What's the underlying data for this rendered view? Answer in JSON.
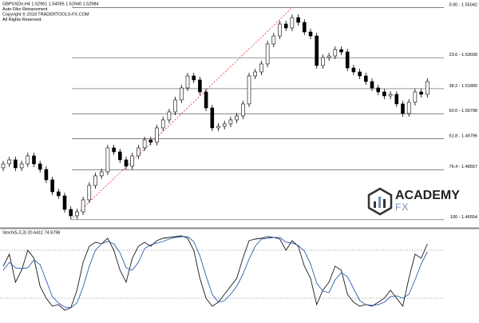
{
  "header": {
    "symbol_line": "GBPUSDe,H4  1.52961 1.54095 1.52940 1.52984",
    "indicator": "Auto Fibo Retracement",
    "copyright": "Copyright © 2018 TRADERTOOLS-FX.COM",
    "rights": "All Rights Reserved."
  },
  "logo": {
    "name": "ACADEMY",
    "sub": "FX"
  },
  "chart_data": [
    {
      "type": "candlestick",
      "open": [
        1.4863,
        1.4879,
        1.4895,
        1.4863,
        1.4879,
        1.4911,
        1.4879,
        1.48566,
        1.4815,
        1.4767,
        1.4751,
        1.46966,
        1.4671,
        1.4687,
        1.4735,
        1.47926,
        1.4831,
        1.4847,
        1.4943,
        1.4927,
        1.4895,
        1.48694,
        1.4911,
        1.4943,
        1.4975,
        1.49654,
        1.5023,
        1.5055,
        1.5087,
        1.5135,
        1.5183,
        1.5231,
        1.5215,
        1.5167,
        1.5103,
        1.5023,
        1.50294,
        1.5039,
        1.5055,
        1.5071,
        1.5119,
        1.5231,
        1.5247,
        1.5279,
        1.5359,
        1.5391,
        1.5439,
        1.5423,
        1.54646,
        1.54454,
        1.5407,
        1.5391,
        1.52726,
        1.53046,
        1.5311,
        1.53366,
        1.5327,
        1.5263,
        1.5247,
        1.5231,
        1.52086,
        1.5183,
        1.5167,
        1.5151,
        1.51574,
        1.5119,
        1.50806,
        1.51254,
        1.5167,
        1.51574
      ],
      "high": [
        1.48918,
        1.49078,
        1.49078,
        1.48918,
        1.49238,
        1.49238,
        1.48918,
        1.48694,
        1.48278,
        1.47798,
        1.47638,
        1.47094,
        1.46998,
        1.47478,
        1.48054,
        1.48438,
        1.48598,
        1.49558,
        1.49558,
        1.49398,
        1.49078,
        1.49238,
        1.49558,
        1.49878,
        1.49878,
        1.50358,
        1.50678,
        1.50998,
        1.51478,
        1.51958,
        1.52438,
        1.52438,
        1.52278,
        1.51798,
        1.51158,
        1.50422,
        1.50518,
        1.50678,
        1.50838,
        1.51318,
        1.52438,
        1.52598,
        1.52918,
        1.53718,
        1.54038,
        1.54518,
        1.54518,
        1.54774,
        1.54774,
        1.54582,
        1.54198,
        1.54038,
        1.53174,
        1.53238,
        1.53494,
        1.53494,
        1.53398,
        1.52758,
        1.52598,
        1.52438,
        1.52214,
        1.51958,
        1.51798,
        1.51702,
        1.51702,
        1.51318,
        1.51382,
        1.51798,
        1.51798,
        1.52214
      ],
      "low": [
        1.48502,
        1.48662,
        1.48502,
        1.48502,
        1.48662,
        1.48662,
        1.48438,
        1.48022,
        1.47542,
        1.47382,
        1.46838,
        1.46582,
        1.46582,
        1.46742,
        1.47222,
        1.47798,
        1.48182,
        1.48342,
        1.49142,
        1.48822,
        1.48566,
        1.48566,
        1.48982,
        1.49302,
        1.49526,
        1.49526,
        1.50102,
        1.50422,
        1.50742,
        1.51222,
        1.51702,
        1.52022,
        1.51542,
        1.50902,
        1.50102,
        1.50102,
        1.50166,
        1.50262,
        1.50422,
        1.50582,
        1.51062,
        1.52182,
        1.52342,
        1.52662,
        1.53462,
        1.53782,
        1.54102,
        1.54102,
        1.54326,
        1.53942,
        1.53782,
        1.52598,
        1.52598,
        1.52918,
        1.52982,
        1.53142,
        1.52502,
        1.52342,
        1.52182,
        1.51958,
        1.51702,
        1.51542,
        1.51382,
        1.51382,
        1.51062,
        1.50678,
        1.50678,
        1.51126,
        1.51446,
        1.51446
      ],
      "close": [
        1.4879,
        1.4895,
        1.4863,
        1.4879,
        1.4911,
        1.4879,
        1.48566,
        1.4815,
        1.4767,
        1.4751,
        1.46966,
        1.4671,
        1.4687,
        1.4735,
        1.47926,
        1.4831,
        1.4847,
        1.4943,
        1.4927,
        1.4895,
        1.48694,
        1.4911,
        1.4943,
        1.4975,
        1.49654,
        1.5023,
        1.5055,
        1.5087,
        1.5135,
        1.5183,
        1.5231,
        1.5215,
        1.5167,
        1.5103,
        1.5023,
        1.50294,
        1.5039,
        1.5055,
        1.5071,
        1.5119,
        1.5231,
        1.5247,
        1.5279,
        1.5359,
        1.5391,
        1.5439,
        1.5423,
        1.54646,
        1.54454,
        1.5407,
        1.5391,
        1.52726,
        1.53046,
        1.5311,
        1.53366,
        1.5327,
        1.5263,
        1.5247,
        1.5231,
        1.52086,
        1.5183,
        1.5167,
        1.5151,
        1.51574,
        1.5119,
        1.50806,
        1.51254,
        1.5167,
        1.51574,
        1.52086
      ],
      "up_color": "#ffffff",
      "down_color": "#000000",
      "wick_color": "#000000",
      "ylim": [
        1.4626,
        1.5535
      ],
      "fib_color": "#555555",
      "trendline_color": "#e03030",
      "fib_levels": [
        {
          "value": 1.55042,
          "label": "0.00 - 1.55042"
        },
        {
          "value": 1.53039,
          "label": "23.6 - 1.53039"
        },
        {
          "value": 1.518,
          "label": "38.2 - 1.51800"
        },
        {
          "value": 1.50798,
          "label": "50.0 - 1.50798"
        },
        {
          "value": 1.49796,
          "label": "61.8 - 1.49796"
        },
        {
          "value": 1.48557,
          "label": "76.4 - 1.48557"
        },
        {
          "value": 1.46554,
          "label": "100 - 1.46554"
        }
      ]
    },
    {
      "type": "line",
      "title": "Stoch(5,3,3) 20.6411 74.8798",
      "ylim": [
        0,
        100
      ],
      "levels": [
        80,
        20
      ],
      "series": [
        {
          "color": "#1a1a1a",
          "values": [
            60,
            75,
            40,
            55,
            80,
            70,
            35,
            20,
            10,
            12,
            5,
            8,
            30,
            65,
            85,
            90,
            88,
            95,
            80,
            55,
            40,
            70,
            85,
            90,
            85,
            92,
            95,
            96,
            97,
            98,
            95,
            80,
            45,
            20,
            10,
            15,
            25,
            35,
            45,
            70,
            92,
            94,
            95,
            97,
            96,
            94,
            80,
            92,
            85,
            60,
            45,
            12,
            30,
            40,
            60,
            55,
            25,
            15,
            10,
            12,
            10,
            15,
            20,
            30,
            20,
            10,
            45,
            75,
            70,
            88
          ]
        },
        {
          "color": "#2a5db0",
          "values": [
            55,
            65,
            58,
            57,
            58,
            68,
            62,
            42,
            22,
            14,
            9,
            8,
            14,
            34,
            60,
            80,
            88,
            91,
            88,
            77,
            58,
            55,
            65,
            82,
            87,
            89,
            91,
            94,
            96,
            97,
            97,
            91,
            73,
            48,
            25,
            15,
            17,
            25,
            35,
            50,
            69,
            85,
            94,
            95,
            96,
            96,
            90,
            89,
            86,
            79,
            63,
            39,
            29,
            27,
            43,
            52,
            47,
            32,
            17,
            12,
            11,
            12,
            15,
            22,
            23,
            20,
            25,
            43,
            63,
            78
          ]
        }
      ]
    }
  ]
}
